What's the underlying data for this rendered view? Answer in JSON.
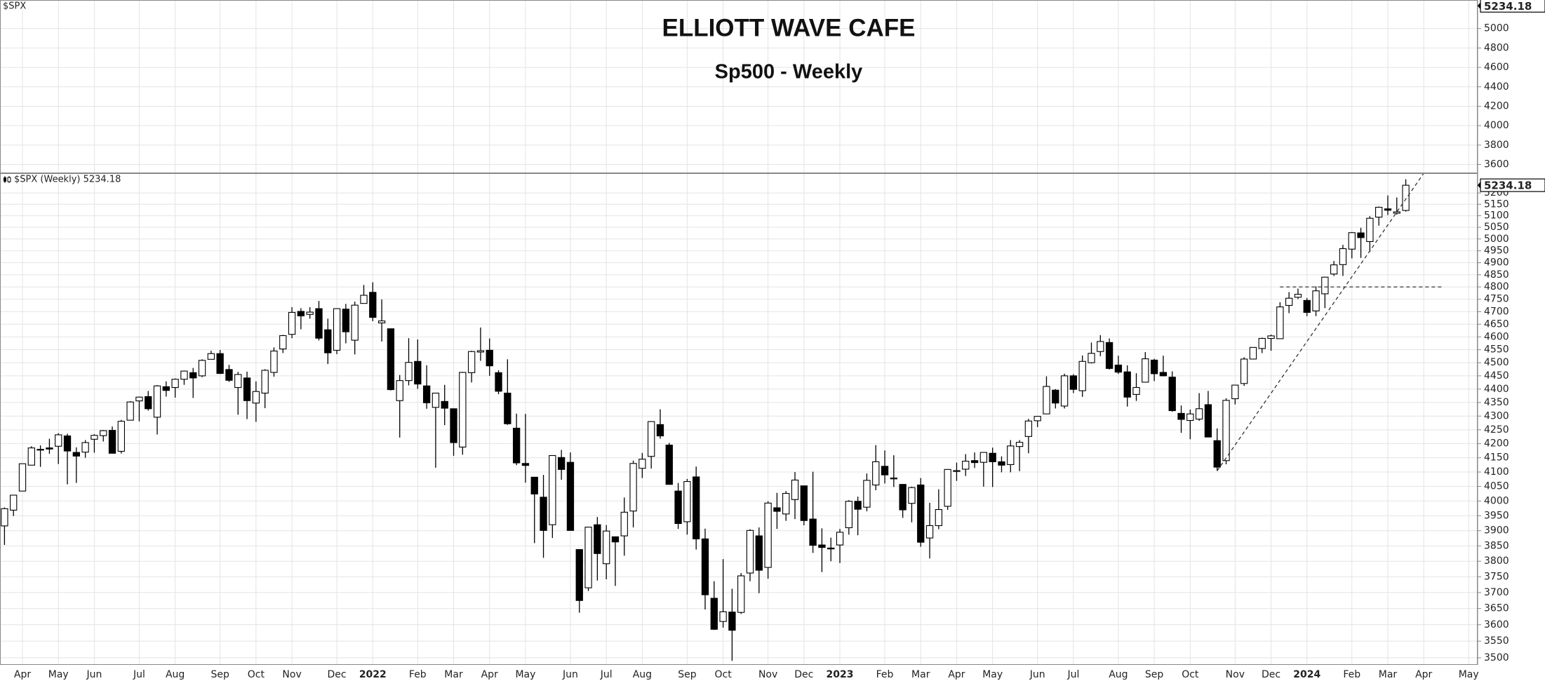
{
  "chart_data": {
    "type": "candlestick",
    "title": "ELLIOTT WAVE CAFE",
    "subtitle": "Sp500 - Weekly",
    "top_panel": {
      "label": "$SPX",
      "ylim": [
        3510,
        5294
      ],
      "yticks": [
        3600,
        3800,
        4000,
        4200,
        4400,
        4600,
        4800,
        5000
      ],
      "last": 5234.18
    },
    "legend": "$SPX (Weekly) 5234.18",
    "log_scale": true,
    "grid": true,
    "up_color": "#ffffff",
    "down_color": "#000000",
    "ylim": [
      3479,
      5288
    ],
    "yticks": [
      3500,
      3550,
      3600,
      3650,
      3700,
      3750,
      3800,
      3850,
      3900,
      3950,
      4000,
      4050,
      4100,
      4150,
      4200,
      4250,
      4300,
      4350,
      4400,
      4450,
      4500,
      4550,
      4600,
      4650,
      4700,
      4750,
      4800,
      4850,
      4900,
      4950,
      5000,
      5050,
      5100,
      5150,
      5200
    ],
    "xlim": [
      -0.5,
      164
    ],
    "xticks": [
      {
        "value": 2,
        "label": "Apr"
      },
      {
        "value": 6,
        "label": "May"
      },
      {
        "value": 10,
        "label": "Jun"
      },
      {
        "value": 15,
        "label": "Jul"
      },
      {
        "value": 19,
        "label": "Aug"
      },
      {
        "value": 24,
        "label": "Sep"
      },
      {
        "value": 28,
        "label": "Oct"
      },
      {
        "value": 32,
        "label": "Nov"
      },
      {
        "value": 37,
        "label": "Dec"
      },
      {
        "value": 41,
        "label": "2022"
      },
      {
        "value": 46,
        "label": "Feb"
      },
      {
        "value": 50,
        "label": "Mar"
      },
      {
        "value": 54,
        "label": "Apr"
      },
      {
        "value": 58,
        "label": "May"
      },
      {
        "value": 63,
        "label": "Jun"
      },
      {
        "value": 67,
        "label": "Jul"
      },
      {
        "value": 71,
        "label": "Aug"
      },
      {
        "value": 76,
        "label": "Sep"
      },
      {
        "value": 80,
        "label": "Oct"
      },
      {
        "value": 85,
        "label": "Nov"
      },
      {
        "value": 89,
        "label": "Dec"
      },
      {
        "value": 93,
        "label": "2023"
      },
      {
        "value": 98,
        "label": "Feb"
      },
      {
        "value": 102,
        "label": "Mar"
      },
      {
        "value": 106,
        "label": "Apr"
      },
      {
        "value": 110,
        "label": "May"
      },
      {
        "value": 115,
        "label": "Jun"
      },
      {
        "value": 119,
        "label": "Jul"
      },
      {
        "value": 124,
        "label": "Aug"
      },
      {
        "value": 128,
        "label": "Sep"
      },
      {
        "value": 132,
        "label": "Oct"
      },
      {
        "value": 137,
        "label": "Nov"
      },
      {
        "value": 141,
        "label": "Dec"
      },
      {
        "value": 145,
        "label": "2024"
      },
      {
        "value": 150,
        "label": "Feb"
      },
      {
        "value": 154,
        "label": "Mar"
      },
      {
        "value": 158,
        "label": "Apr"
      },
      {
        "value": 163,
        "label": "May"
      }
    ],
    "lines": [
      {
        "x": [
          135,
          158
        ],
        "y": [
          4104,
          5288
        ]
      },
      {
        "x": [
          142,
          160
        ],
        "y": [
          4800,
          4800
        ]
      }
    ],
    "values": [
      [
        3916,
        3978,
        3853,
        3974
      ],
      [
        3969,
        4020,
        3949,
        4020
      ],
      [
        4034,
        4129,
        4034,
        4129
      ],
      [
        4124,
        4191,
        4124,
        4185
      ],
      [
        4179,
        4194,
        4118,
        4180
      ],
      [
        4185,
        4218,
        4164,
        4181
      ],
      [
        4191,
        4238,
        4128,
        4232
      ],
      [
        4228,
        4236,
        4057,
        4174
      ],
      [
        4169,
        4187,
        4062,
        4156
      ],
      [
        4170,
        4213,
        4150,
        4204
      ],
      [
        4216,
        4234,
        4168,
        4230
      ],
      [
        4229,
        4249,
        4208,
        4247
      ],
      [
        4248,
        4262,
        4165,
        4166
      ],
      [
        4173,
        4286,
        4165,
        4281
      ],
      [
        4285,
        4355,
        4285,
        4352
      ],
      [
        4356,
        4372,
        4281,
        4370
      ],
      [
        4372,
        4393,
        4320,
        4327
      ],
      [
        4296,
        4415,
        4233,
        4412
      ],
      [
        4409,
        4429,
        4372,
        4395
      ],
      [
        4406,
        4440,
        4368,
        4437
      ],
      [
        4437,
        4470,
        4416,
        4468
      ],
      [
        4462,
        4480,
        4367,
        4442
      ],
      [
        4450,
        4513,
        4445,
        4509
      ],
      [
        4513,
        4546,
        4513,
        4535
      ],
      [
        4535,
        4549,
        4457,
        4459
      ],
      [
        4474,
        4492,
        4427,
        4433
      ],
      [
        4406,
        4465,
        4305,
        4455
      ],
      [
        4442,
        4466,
        4289,
        4357
      ],
      [
        4348,
        4429,
        4279,
        4391
      ],
      [
        4385,
        4475,
        4329,
        4471
      ],
      [
        4463,
        4559,
        4447,
        4545
      ],
      [
        4553,
        4608,
        4537,
        4605
      ],
      [
        4610,
        4718,
        4595,
        4697
      ],
      [
        4701,
        4714,
        4630,
        4683
      ],
      [
        4689,
        4718,
        4672,
        4698
      ],
      [
        4712,
        4743,
        4586,
        4595
      ],
      [
        4628,
        4672,
        4495,
        4538
      ],
      [
        4548,
        4713,
        4533,
        4712
      ],
      [
        4710,
        4731,
        4575,
        4620
      ],
      [
        4587,
        4740,
        4532,
        4726
      ],
      [
        4733,
        4808,
        4733,
        4766
      ],
      [
        4778,
        4819,
        4662,
        4677
      ],
      [
        4655,
        4749,
        4582,
        4663
      ],
      [
        4632,
        4632,
        4395,
        4398
      ],
      [
        4357,
        4453,
        4222,
        4432
      ],
      [
        4432,
        4595,
        4414,
        4501
      ],
      [
        4505,
        4590,
        4401,
        4419
      ],
      [
        4412,
        4490,
        4327,
        4349
      ],
      [
        4332,
        4385,
        4115,
        4385
      ],
      [
        4354,
        4416,
        4267,
        4329
      ],
      [
        4327,
        4327,
        4157,
        4204
      ],
      [
        4188,
        4465,
        4161,
        4463
      ],
      [
        4462,
        4546,
        4425,
        4543
      ],
      [
        4541,
        4637,
        4507,
        4546
      ],
      [
        4548,
        4594,
        4450,
        4488
      ],
      [
        4462,
        4471,
        4381,
        4392
      ],
      [
        4385,
        4513,
        4268,
        4272
      ],
      [
        4256,
        4309,
        4124,
        4132
      ],
      [
        4130,
        4308,
        4063,
        4123
      ],
      [
        4082,
        4082,
        3859,
        4024
      ],
      [
        4013,
        4090,
        3811,
        3901
      ],
      [
        3920,
        4158,
        3876,
        4158
      ],
      [
        4151,
        4178,
        4073,
        4109
      ],
      [
        4134,
        4169,
        3901,
        3901
      ],
      [
        3838,
        3838,
        3637,
        3675
      ],
      [
        3715,
        3913,
        3705,
        3912
      ],
      [
        3920,
        3946,
        3738,
        3825
      ],
      [
        3792,
        3919,
        3742,
        3899
      ],
      [
        3880,
        3880,
        3721,
        3863
      ],
      [
        3883,
        4012,
        3818,
        3962
      ],
      [
        3966,
        4140,
        3911,
        4130
      ],
      [
        4113,
        4167,
        4079,
        4145
      ],
      [
        4155,
        4280,
        4112,
        4280
      ],
      [
        4269,
        4325,
        4218,
        4228
      ],
      [
        4195,
        4203,
        4057,
        4057
      ],
      [
        4034,
        4062,
        3906,
        3924
      ],
      [
        3930,
        4076,
        3887,
        4067
      ],
      [
        4083,
        4119,
        3838,
        3873
      ],
      [
        3873,
        3907,
        3647,
        3693
      ],
      [
        3682,
        3736,
        3584,
        3586
      ],
      [
        3610,
        3807,
        3591,
        3640
      ],
      [
        3639,
        3712,
        3491,
        3583
      ],
      [
        3638,
        3762,
        3633,
        3753
      ],
      [
        3762,
        3905,
        3736,
        3901
      ],
      [
        3883,
        3911,
        3698,
        3771
      ],
      [
        3780,
        3999,
        3744,
        3993
      ],
      [
        3977,
        4028,
        3906,
        3965
      ],
      [
        3956,
        4034,
        3933,
        4026
      ],
      [
        4005,
        4100,
        3939,
        4072
      ],
      [
        4052,
        4053,
        3918,
        3934
      ],
      [
        3939,
        4101,
        3827,
        3852
      ],
      [
        3853,
        3908,
        3765,
        3845
      ],
      [
        3843,
        3877,
        3800,
        3840
      ],
      [
        3853,
        3906,
        3794,
        3895
      ],
      [
        3910,
        4003,
        3887,
        3999
      ],
      [
        3999,
        4015,
        3885,
        3972
      ],
      [
        3979,
        4095,
        3965,
        4071
      ],
      [
        4055,
        4195,
        4037,
        4136
      ],
      [
        4120,
        4176,
        4060,
        4090
      ],
      [
        4079,
        4159,
        4048,
        4079
      ],
      [
        4057,
        4057,
        3943,
        3970
      ],
      [
        3992,
        4049,
        3928,
        4046
      ],
      [
        4055,
        4079,
        3847,
        3862
      ],
      [
        3876,
        3994,
        3809,
        3917
      ],
      [
        3917,
        4040,
        3905,
        3971
      ],
      [
        3982,
        4110,
        3970,
        4109
      ],
      [
        4102,
        4133,
        4069,
        4105
      ],
      [
        4110,
        4163,
        4086,
        4138
      ],
      [
        4140,
        4169,
        4114,
        4133
      ],
      [
        4134,
        4170,
        4049,
        4169
      ],
      [
        4166,
        4186,
        4048,
        4136
      ],
      [
        4136,
        4155,
        4099,
        4124
      ],
      [
        4126,
        4213,
        4099,
        4192
      ],
      [
        4190,
        4213,
        4103,
        4205
      ],
      [
        4226,
        4290,
        4166,
        4282
      ],
      [
        4283,
        4299,
        4260,
        4299
      ],
      [
        4308,
        4448,
        4308,
        4410
      ],
      [
        4396,
        4400,
        4328,
        4348
      ],
      [
        4337,
        4458,
        4328,
        4450
      ],
      [
        4450,
        4456,
        4385,
        4399
      ],
      [
        4394,
        4528,
        4371,
        4505
      ],
      [
        4500,
        4578,
        4497,
        4536
      ],
      [
        4543,
        4607,
        4525,
        4582
      ],
      [
        4578,
        4594,
        4474,
        4478
      ],
      [
        4491,
        4527,
        4457,
        4464
      ],
      [
        4465,
        4490,
        4335,
        4370
      ],
      [
        4380,
        4460,
        4356,
        4406
      ],
      [
        4426,
        4541,
        4426,
        4515
      ],
      [
        4510,
        4515,
        4430,
        4458
      ],
      [
        4463,
        4527,
        4448,
        4450
      ],
      [
        4445,
        4467,
        4316,
        4320
      ],
      [
        4310,
        4339,
        4239,
        4288
      ],
      [
        4284,
        4324,
        4216,
        4308
      ],
      [
        4289,
        4385,
        4283,
        4327
      ],
      [
        4342,
        4393,
        4223,
        4224
      ],
      [
        4211,
        4255,
        4104,
        4117
      ],
      [
        4140,
        4366,
        4127,
        4358
      ],
      [
        4364,
        4415,
        4343,
        4415
      ],
      [
        4421,
        4521,
        4412,
        4514
      ],
      [
        4514,
        4560,
        4513,
        4559
      ],
      [
        4555,
        4597,
        4537,
        4594
      ],
      [
        4594,
        4609,
        4546,
        4604
      ],
      [
        4593,
        4738,
        4593,
        4719
      ],
      [
        4725,
        4779,
        4694,
        4754
      ],
      [
        4758,
        4793,
        4751,
        4770
      ],
      [
        4745,
        4755,
        4682,
        4697
      ],
      [
        4703,
        4802,
        4682,
        4784
      ],
      [
        4772,
        4842,
        4714,
        4840
      ],
      [
        4853,
        4907,
        4845,
        4891
      ],
      [
        4892,
        4975,
        4845,
        4959
      ],
      [
        4957,
        5030,
        4918,
        5027
      ],
      [
        5026,
        5048,
        4920,
        5006
      ],
      [
        4989,
        5098,
        4946,
        5089
      ],
      [
        5094,
        5140,
        5057,
        5137
      ],
      [
        5130,
        5189,
        5103,
        5124
      ],
      [
        5111,
        5180,
        5105,
        5117
      ],
      [
        5123,
        5261,
        5118,
        5234.18
      ]
    ]
  }
}
